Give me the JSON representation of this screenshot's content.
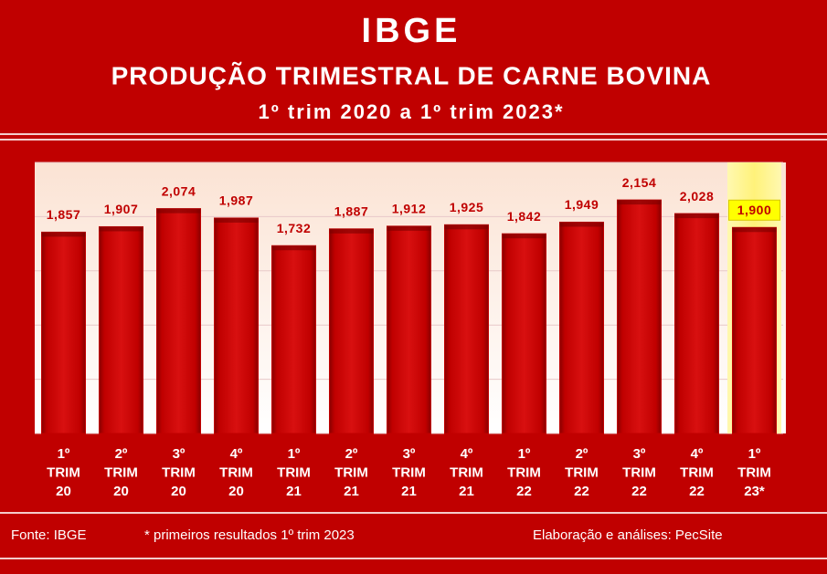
{
  "chart_data": {
    "type": "bar",
    "title": "IBGE",
    "subtitle": "PRODUÇÃO TRIMESTRAL DE CARNE BOVINA",
    "period": "1º trim 2020 a 1º trim 2023*",
    "categories": [
      [
        "1º",
        "TRIM",
        "20"
      ],
      [
        "2º",
        "TRIM",
        "20"
      ],
      [
        "3º",
        "TRIM",
        "20"
      ],
      [
        "4º",
        "TRIM",
        "20"
      ],
      [
        "1º",
        "TRIM",
        "21"
      ],
      [
        "2º",
        "TRIM",
        "21"
      ],
      [
        "3º",
        "TRIM",
        "21"
      ],
      [
        "4º",
        "TRIM",
        "21"
      ],
      [
        "1º",
        "TRIM",
        "22"
      ],
      [
        "2º",
        "TRIM",
        "22"
      ],
      [
        "3º",
        "TRIM",
        "22"
      ],
      [
        "4º",
        "TRIM",
        "22"
      ],
      [
        "1º",
        "TRIM",
        "23*"
      ]
    ],
    "values": [
      1857,
      1907,
      2074,
      1987,
      1732,
      1887,
      1912,
      1925,
      1842,
      1949,
      2154,
      2028,
      1900
    ],
    "value_labels": [
      "1,857",
      "1,907",
      "2,074",
      "1,987",
      "1,732",
      "1,887",
      "1,912",
      "1,925",
      "1,842",
      "1,949",
      "2,154",
      "2,028",
      "1,900"
    ],
    "color": "#c00000",
    "ylim": [
      0,
      2500
    ],
    "yticks": [
      0,
      500,
      1000,
      1500,
      2000,
      2500
    ],
    "grid": true,
    "highlight": {
      "index": 12,
      "color": "#fff27a"
    },
    "source": "Fonte: IBGE",
    "note": "* primeiros resultados 1º trim 2023",
    "credit": "Elaboração e análises: PecSite"
  }
}
